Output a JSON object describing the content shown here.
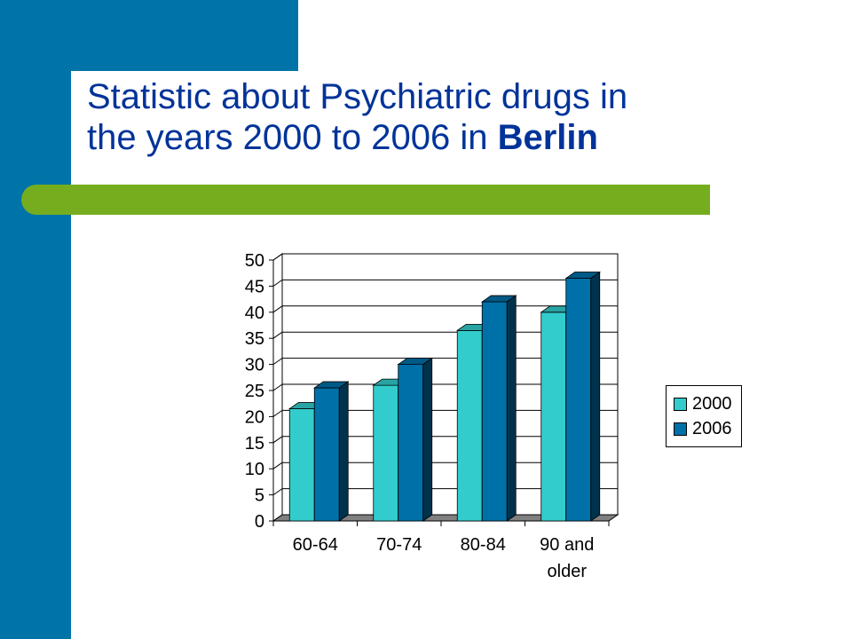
{
  "title": {
    "line1": "Statistic about Psychiatric drugs in",
    "line2_prefix": "the years 2000 to 2006 in ",
    "line2_bold": "Berlin"
  },
  "colors": {
    "brand_blue": "#0073a8",
    "accent_green": "#76ad1f",
    "title_text": "#003399",
    "series_2000": "#33cccc",
    "series_2006": "#0070a8"
  },
  "chart_data": {
    "type": "bar",
    "title": "",
    "xlabel": "",
    "ylabel": "",
    "categories": [
      "60-64",
      "70-74",
      "80-84",
      "90 and older"
    ],
    "category_lines": [
      [
        "60-64"
      ],
      [
        "70-74"
      ],
      [
        "80-84"
      ],
      [
        "90 and",
        "older"
      ]
    ],
    "series": [
      {
        "name": "2000",
        "values": [
          21.5,
          26,
          36.5,
          40
        ]
      },
      {
        "name": "2006",
        "values": [
          25.5,
          30,
          42,
          46.5
        ]
      }
    ],
    "ylim": [
      0,
      50
    ],
    "yticks": [
      0,
      5,
      10,
      15,
      20,
      25,
      30,
      35,
      40,
      45,
      50
    ],
    "grid": true,
    "three_d": true,
    "legend_position": "right"
  }
}
